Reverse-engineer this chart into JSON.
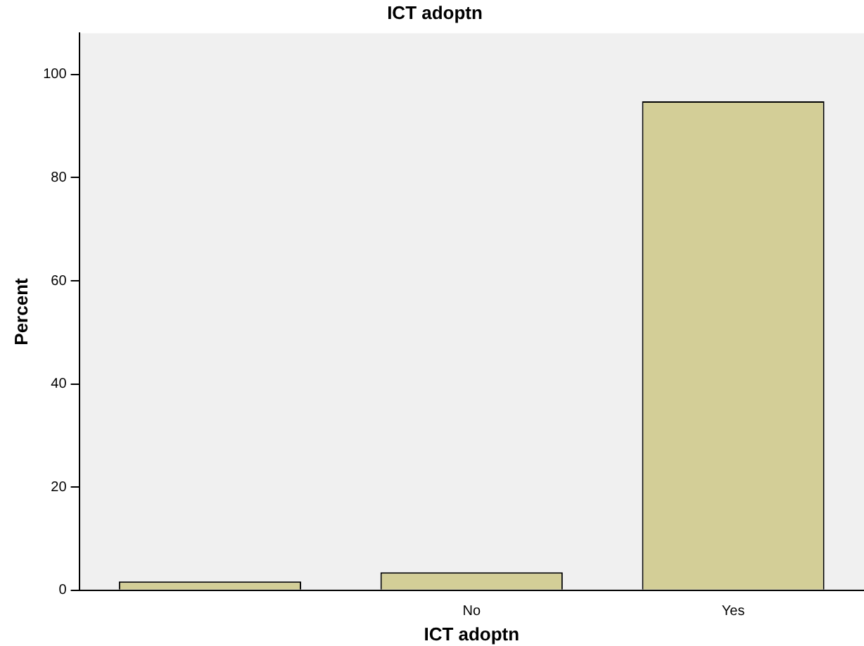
{
  "chart_data": {
    "type": "bar",
    "title": "ICT adoptn",
    "xlabel": "ICT adoptn",
    "ylabel": "Percent",
    "categories": [
      null,
      "No",
      "Yes"
    ],
    "values": [
      1.7,
      3.5,
      94.8
    ],
    "color": "#d3ce97",
    "ylim": [
      0,
      108
    ],
    "yticks": [
      0,
      20,
      40,
      60,
      80,
      100
    ],
    "grid": false,
    "legend": false
  }
}
